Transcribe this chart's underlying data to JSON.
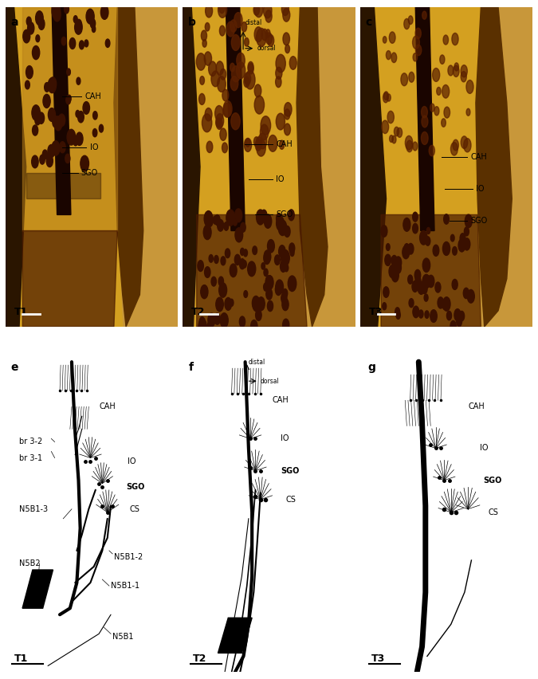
{
  "figure_width": 6.75,
  "figure_height": 8.52,
  "bg_color": "#ffffff",
  "top_row_labels": [
    "a",
    "b",
    "c"
  ],
  "bottom_row_labels": [
    "e",
    "f",
    "g"
  ],
  "specimen_labels_top": [
    "T1",
    "T2",
    "T3"
  ],
  "specimen_labels_bottom": [
    "T1",
    "T2",
    "T3"
  ],
  "label_fontsize": 7,
  "panel_label_fontsize": 10,
  "specimen_label_fontsize": 9
}
